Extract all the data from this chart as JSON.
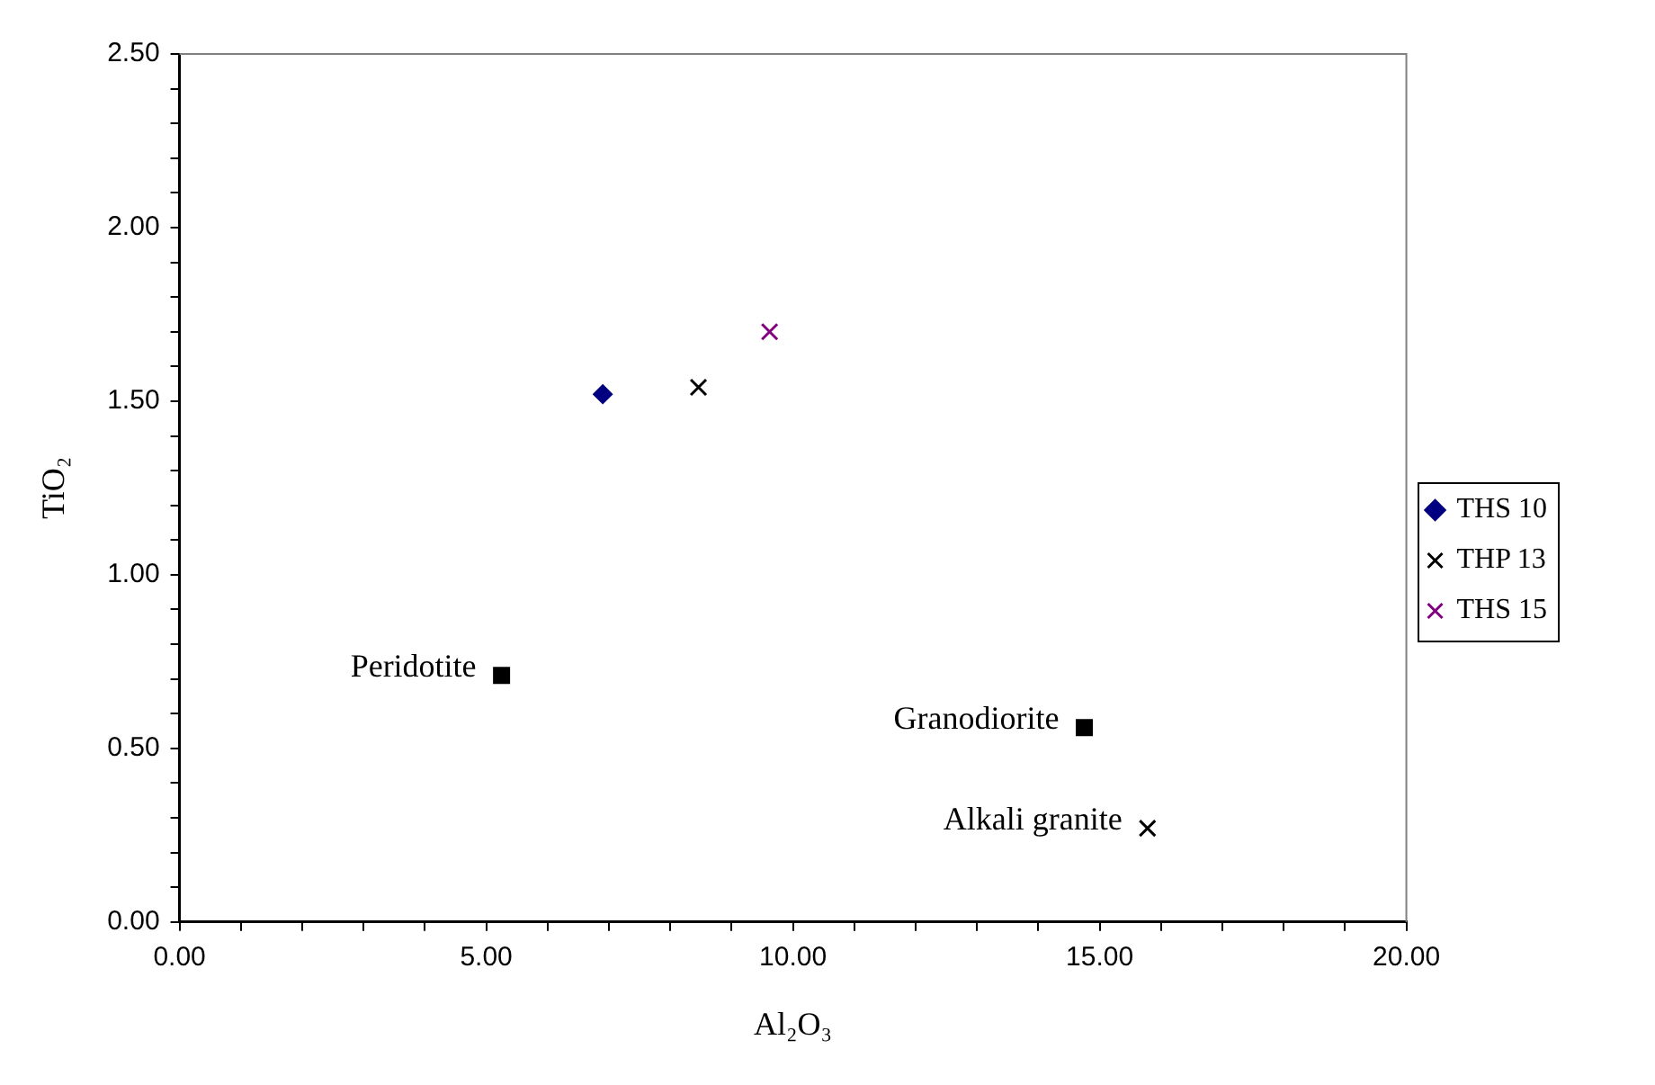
{
  "chart_data": {
    "type": "scatter",
    "xlabel": "Al₂O₃",
    "ylabel": "TiO₂",
    "xlim": [
      0,
      20
    ],
    "ylim": [
      0,
      2.5
    ],
    "xticks": [
      {
        "value": 0,
        "label": "0.00"
      },
      {
        "value": 1,
        "label": null
      },
      {
        "value": 2,
        "label": null
      },
      {
        "value": 3,
        "label": null
      },
      {
        "value": 4,
        "label": null
      },
      {
        "value": 5,
        "label": "5.00"
      },
      {
        "value": 6,
        "label": null
      },
      {
        "value": 7,
        "label": null
      },
      {
        "value": 8,
        "label": null
      },
      {
        "value": 9,
        "label": null
      },
      {
        "value": 10,
        "label": "10.00"
      },
      {
        "value": 11,
        "label": null
      },
      {
        "value": 12,
        "label": null
      },
      {
        "value": 13,
        "label": null
      },
      {
        "value": 14,
        "label": null
      },
      {
        "value": 15,
        "label": "15.00"
      },
      {
        "value": 16,
        "label": null
      },
      {
        "value": 17,
        "label": null
      },
      {
        "value": 18,
        "label": null
      },
      {
        "value": 19,
        "label": null
      },
      {
        "value": 20,
        "label": "20.00"
      }
    ],
    "yticks": [
      {
        "value": 0,
        "label": "0.00"
      },
      {
        "value": 0.1,
        "label": null
      },
      {
        "value": 0.2,
        "label": null
      },
      {
        "value": 0.3,
        "label": null
      },
      {
        "value": 0.4,
        "label": null
      },
      {
        "value": 0.5,
        "label": "0.50"
      },
      {
        "value": 0.6,
        "label": null
      },
      {
        "value": 0.7,
        "label": null
      },
      {
        "value": 0.8,
        "label": null
      },
      {
        "value": 0.9,
        "label": null
      },
      {
        "value": 1,
        "label": "1.00"
      },
      {
        "value": 1.1,
        "label": null
      },
      {
        "value": 1.2,
        "label": null
      },
      {
        "value": 1.3,
        "label": null
      },
      {
        "value": 1.4,
        "label": null
      },
      {
        "value": 1.5,
        "label": "1.50"
      },
      {
        "value": 1.6,
        "label": null
      },
      {
        "value": 1.7,
        "label": null
      },
      {
        "value": 1.8,
        "label": null
      },
      {
        "value": 1.9,
        "label": null
      },
      {
        "value": 2,
        "label": "2.00"
      },
      {
        "value": 2.1,
        "label": null
      },
      {
        "value": 2.2,
        "label": null
      },
      {
        "value": 2.3,
        "label": null
      },
      {
        "value": 2.4,
        "label": null
      },
      {
        "value": 2.5,
        "label": "2.50"
      }
    ],
    "grid": false,
    "legend": "right",
    "series": [
      {
        "name": "THS 10",
        "color": "#000080",
        "marker": "diamond",
        "x": [
          6.9
        ],
        "values": [
          1.52
        ]
      },
      {
        "name": "THP 13",
        "color": "#000000",
        "marker": "cross",
        "x": [
          8.46
        ],
        "values": [
          1.54
        ]
      },
      {
        "name": "THS 15",
        "color": "#800080",
        "marker": "cross",
        "x": [
          9.62
        ],
        "values": [
          1.7
        ]
      },
      {
        "color": "#000000",
        "marker": "square",
        "x": [
          5.25
        ],
        "values": [
          0.71
        ]
      },
      {
        "color": "#000000",
        "marker": "square",
        "x": [
          14.75
        ],
        "values": [
          0.56
        ]
      },
      {
        "color": "#000000",
        "marker": "cross",
        "x": [
          15.78
        ],
        "values": [
          0.27
        ]
      }
    ],
    "annotations": [
      {
        "text": "Peridotite",
        "x": 5.25,
        "y": 0.71
      },
      {
        "text": "Granodiorite",
        "x": 14.75,
        "y": 0.56
      },
      {
        "text": "Alkali granite",
        "x": 15.78,
        "y": 0.27
      }
    ]
  }
}
